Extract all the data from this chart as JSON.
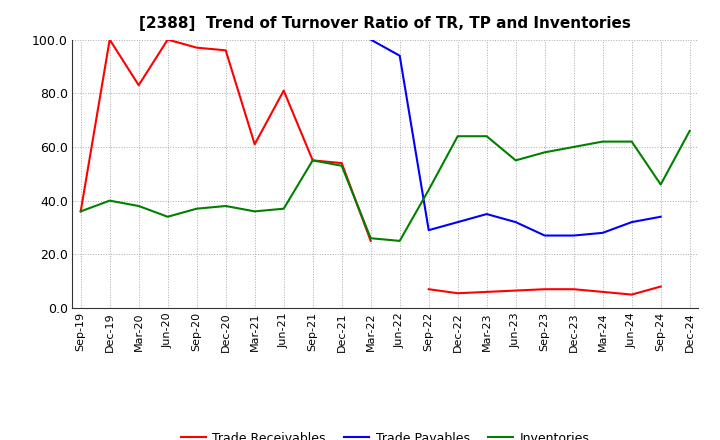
{
  "title": "[2388]  Trend of Turnover Ratio of TR, TP and Inventories",
  "labels": [
    "Sep-19",
    "Dec-19",
    "Mar-20",
    "Jun-20",
    "Sep-20",
    "Dec-20",
    "Mar-21",
    "Jun-21",
    "Sep-21",
    "Dec-21",
    "Mar-22",
    "Jun-22",
    "Sep-22",
    "Dec-22",
    "Mar-23",
    "Jun-23",
    "Sep-23",
    "Dec-23",
    "Mar-24",
    "Jun-24",
    "Sep-24",
    "Dec-24"
  ],
  "trade_receivables": [
    36.0,
    100.0,
    83.0,
    100.0,
    97.0,
    96.0,
    61.0,
    81.0,
    55.0,
    54.0,
    25.0,
    null,
    7.0,
    5.5,
    6.0,
    6.5,
    7.0,
    7.0,
    6.0,
    5.0,
    8.0,
    null
  ],
  "trade_payables": [
    null,
    null,
    null,
    null,
    null,
    null,
    null,
    null,
    null,
    null,
    100.0,
    94.0,
    29.0,
    32.0,
    35.0,
    32.0,
    27.0,
    27.0,
    28.0,
    32.0,
    34.0,
    null
  ],
  "inventories": [
    36.0,
    40.0,
    38.0,
    34.0,
    37.0,
    38.0,
    36.0,
    37.0,
    55.0,
    53.0,
    26.0,
    25.0,
    44.0,
    64.0,
    64.0,
    55.0,
    58.0,
    60.0,
    62.0,
    62.0,
    46.0,
    66.0
  ],
  "tr_color": "#FF0000",
  "tp_color": "#0000FF",
  "inv_color": "#008000",
  "ylim": [
    0.0,
    100.0
  ],
  "yticks": [
    0.0,
    20.0,
    40.0,
    60.0,
    80.0,
    100.0
  ],
  "background_color": "#FFFFFF",
  "grid_color": "#AAAAAA",
  "legend_labels": [
    "Trade Receivables",
    "Trade Payables",
    "Inventories"
  ],
  "title_fontsize": 11,
  "tick_fontsize": 8,
  "ytick_fontsize": 9,
  "linewidth": 1.5
}
